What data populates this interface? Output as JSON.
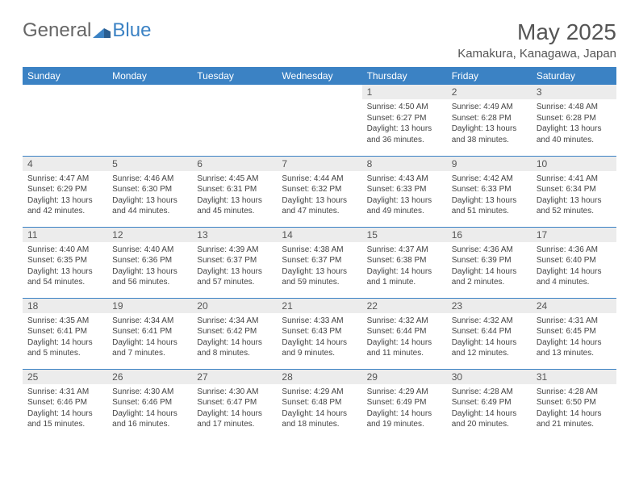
{
  "logo": {
    "part1": "General",
    "part2": "Blue"
  },
  "title": "May 2025",
  "location": "Kamakura, Kanagawa, Japan",
  "day_headers": [
    "Sunday",
    "Monday",
    "Tuesday",
    "Wednesday",
    "Thursday",
    "Friday",
    "Saturday"
  ],
  "colors": {
    "header_bg": "#3b82c4",
    "header_text": "#ffffff",
    "daynum_bg": "#ececec",
    "text": "#444444",
    "border": "#3b82c4"
  },
  "weeks": [
    [
      null,
      null,
      null,
      null,
      {
        "num": "1",
        "sunrise": "Sunrise: 4:50 AM",
        "sunset": "Sunset: 6:27 PM",
        "daylight": "Daylight: 13 hours and 36 minutes."
      },
      {
        "num": "2",
        "sunrise": "Sunrise: 4:49 AM",
        "sunset": "Sunset: 6:28 PM",
        "daylight": "Daylight: 13 hours and 38 minutes."
      },
      {
        "num": "3",
        "sunrise": "Sunrise: 4:48 AM",
        "sunset": "Sunset: 6:28 PM",
        "daylight": "Daylight: 13 hours and 40 minutes."
      }
    ],
    [
      {
        "num": "4",
        "sunrise": "Sunrise: 4:47 AM",
        "sunset": "Sunset: 6:29 PM",
        "daylight": "Daylight: 13 hours and 42 minutes."
      },
      {
        "num": "5",
        "sunrise": "Sunrise: 4:46 AM",
        "sunset": "Sunset: 6:30 PM",
        "daylight": "Daylight: 13 hours and 44 minutes."
      },
      {
        "num": "6",
        "sunrise": "Sunrise: 4:45 AM",
        "sunset": "Sunset: 6:31 PM",
        "daylight": "Daylight: 13 hours and 45 minutes."
      },
      {
        "num": "7",
        "sunrise": "Sunrise: 4:44 AM",
        "sunset": "Sunset: 6:32 PM",
        "daylight": "Daylight: 13 hours and 47 minutes."
      },
      {
        "num": "8",
        "sunrise": "Sunrise: 4:43 AM",
        "sunset": "Sunset: 6:33 PM",
        "daylight": "Daylight: 13 hours and 49 minutes."
      },
      {
        "num": "9",
        "sunrise": "Sunrise: 4:42 AM",
        "sunset": "Sunset: 6:33 PM",
        "daylight": "Daylight: 13 hours and 51 minutes."
      },
      {
        "num": "10",
        "sunrise": "Sunrise: 4:41 AM",
        "sunset": "Sunset: 6:34 PM",
        "daylight": "Daylight: 13 hours and 52 minutes."
      }
    ],
    [
      {
        "num": "11",
        "sunrise": "Sunrise: 4:40 AM",
        "sunset": "Sunset: 6:35 PM",
        "daylight": "Daylight: 13 hours and 54 minutes."
      },
      {
        "num": "12",
        "sunrise": "Sunrise: 4:40 AM",
        "sunset": "Sunset: 6:36 PM",
        "daylight": "Daylight: 13 hours and 56 minutes."
      },
      {
        "num": "13",
        "sunrise": "Sunrise: 4:39 AM",
        "sunset": "Sunset: 6:37 PM",
        "daylight": "Daylight: 13 hours and 57 minutes."
      },
      {
        "num": "14",
        "sunrise": "Sunrise: 4:38 AM",
        "sunset": "Sunset: 6:37 PM",
        "daylight": "Daylight: 13 hours and 59 minutes."
      },
      {
        "num": "15",
        "sunrise": "Sunrise: 4:37 AM",
        "sunset": "Sunset: 6:38 PM",
        "daylight": "Daylight: 14 hours and 1 minute."
      },
      {
        "num": "16",
        "sunrise": "Sunrise: 4:36 AM",
        "sunset": "Sunset: 6:39 PM",
        "daylight": "Daylight: 14 hours and 2 minutes."
      },
      {
        "num": "17",
        "sunrise": "Sunrise: 4:36 AM",
        "sunset": "Sunset: 6:40 PM",
        "daylight": "Daylight: 14 hours and 4 minutes."
      }
    ],
    [
      {
        "num": "18",
        "sunrise": "Sunrise: 4:35 AM",
        "sunset": "Sunset: 6:41 PM",
        "daylight": "Daylight: 14 hours and 5 minutes."
      },
      {
        "num": "19",
        "sunrise": "Sunrise: 4:34 AM",
        "sunset": "Sunset: 6:41 PM",
        "daylight": "Daylight: 14 hours and 7 minutes."
      },
      {
        "num": "20",
        "sunrise": "Sunrise: 4:34 AM",
        "sunset": "Sunset: 6:42 PM",
        "daylight": "Daylight: 14 hours and 8 minutes."
      },
      {
        "num": "21",
        "sunrise": "Sunrise: 4:33 AM",
        "sunset": "Sunset: 6:43 PM",
        "daylight": "Daylight: 14 hours and 9 minutes."
      },
      {
        "num": "22",
        "sunrise": "Sunrise: 4:32 AM",
        "sunset": "Sunset: 6:44 PM",
        "daylight": "Daylight: 14 hours and 11 minutes."
      },
      {
        "num": "23",
        "sunrise": "Sunrise: 4:32 AM",
        "sunset": "Sunset: 6:44 PM",
        "daylight": "Daylight: 14 hours and 12 minutes."
      },
      {
        "num": "24",
        "sunrise": "Sunrise: 4:31 AM",
        "sunset": "Sunset: 6:45 PM",
        "daylight": "Daylight: 14 hours and 13 minutes."
      }
    ],
    [
      {
        "num": "25",
        "sunrise": "Sunrise: 4:31 AM",
        "sunset": "Sunset: 6:46 PM",
        "daylight": "Daylight: 14 hours and 15 minutes."
      },
      {
        "num": "26",
        "sunrise": "Sunrise: 4:30 AM",
        "sunset": "Sunset: 6:46 PM",
        "daylight": "Daylight: 14 hours and 16 minutes."
      },
      {
        "num": "27",
        "sunrise": "Sunrise: 4:30 AM",
        "sunset": "Sunset: 6:47 PM",
        "daylight": "Daylight: 14 hours and 17 minutes."
      },
      {
        "num": "28",
        "sunrise": "Sunrise: 4:29 AM",
        "sunset": "Sunset: 6:48 PM",
        "daylight": "Daylight: 14 hours and 18 minutes."
      },
      {
        "num": "29",
        "sunrise": "Sunrise: 4:29 AM",
        "sunset": "Sunset: 6:49 PM",
        "daylight": "Daylight: 14 hours and 19 minutes."
      },
      {
        "num": "30",
        "sunrise": "Sunrise: 4:28 AM",
        "sunset": "Sunset: 6:49 PM",
        "daylight": "Daylight: 14 hours and 20 minutes."
      },
      {
        "num": "31",
        "sunrise": "Sunrise: 4:28 AM",
        "sunset": "Sunset: 6:50 PM",
        "daylight": "Daylight: 14 hours and 21 minutes."
      }
    ]
  ]
}
